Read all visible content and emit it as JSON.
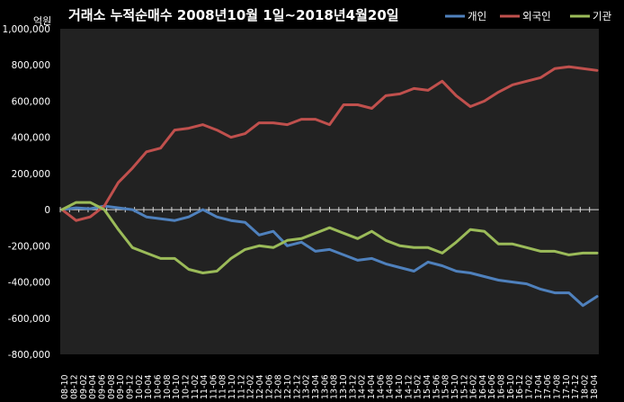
{
  "chart_data": {
    "type": "line",
    "title": "거래소 누적순매수 2008년10월 1일~2018년4월20일",
    "ylabel": "억원",
    "xlabel": "",
    "ylim": [
      -800000,
      1000000
    ],
    "yticks": [
      "1,000,000",
      "800,000",
      "600,000",
      "400,000",
      "200,000",
      "0",
      "-200,000",
      "-400,000",
      "-600,000",
      "-800,000"
    ],
    "ytick_values": [
      1000000,
      800000,
      600000,
      400000,
      200000,
      0,
      -200000,
      -400000,
      -600000,
      -800000
    ],
    "x": [
      "08-10",
      "09-01",
      "09-04",
      "09-07",
      "09-10",
      "10-01",
      "10-04",
      "10-07",
      "10-10",
      "11-01",
      "11-04",
      "11-07",
      "11-10",
      "12-01",
      "12-04",
      "12-07",
      "12-10",
      "13-01",
      "13-04",
      "13-07",
      "13-10",
      "14-01",
      "14-04",
      "14-07",
      "14-10",
      "15-01",
      "15-04",
      "15-07",
      "15-10",
      "16-01",
      "16-04",
      "16-07",
      "16-10",
      "17-01",
      "17-04",
      "17-07",
      "17-10",
      "18-01",
      "18-04"
    ],
    "xticks": [
      "08-10",
      "08-12",
      "09-02",
      "09-04",
      "09-06",
      "09-08",
      "09-10",
      "09-12",
      "10-02",
      "10-04",
      "10-06",
      "10-08",
      "10-10",
      "10-12",
      "11-02",
      "11-04",
      "11-06",
      "11-08",
      "11-10",
      "11-12",
      "12-02",
      "12-04",
      "12-06",
      "12-08",
      "12-10",
      "12-12",
      "13-02",
      "13-04",
      "13-06",
      "13-08",
      "13-10",
      "13-12",
      "14-02",
      "14-04",
      "14-06",
      "14-08",
      "14-10",
      "14-12",
      "15-02",
      "15-04",
      "15-06",
      "15-08",
      "15-10",
      "15-12",
      "16-02",
      "16-04",
      "16-06",
      "16-08",
      "16-10",
      "16-12",
      "17-02",
      "17-04",
      "17-06",
      "17-08",
      "17-10",
      "17-12",
      "18-02",
      "18-04"
    ],
    "legend_position": "top-right",
    "grid": false,
    "series": [
      {
        "name": "개인",
        "color": "#4f81bd",
        "values": [
          0,
          10000,
          5000,
          20000,
          10000,
          0,
          -40000,
          -50000,
          -60000,
          -40000,
          0,
          -40000,
          -60000,
          -70000,
          -140000,
          -120000,
          -200000,
          -180000,
          -230000,
          -220000,
          -250000,
          -280000,
          -270000,
          -300000,
          -320000,
          -340000,
          -290000,
          -310000,
          -340000,
          -350000,
          -370000,
          -390000,
          -400000,
          -410000,
          -440000,
          -460000,
          -460000,
          -530000,
          -480000
        ]
      },
      {
        "name": "외국인",
        "color": "#c0504d",
        "values": [
          0,
          -60000,
          -40000,
          20000,
          150000,
          230000,
          320000,
          340000,
          440000,
          450000,
          470000,
          440000,
          400000,
          420000,
          480000,
          480000,
          470000,
          500000,
          500000,
          470000,
          580000,
          580000,
          560000,
          630000,
          640000,
          670000,
          660000,
          710000,
          630000,
          570000,
          600000,
          650000,
          690000,
          710000,
          730000,
          780000,
          790000,
          780000,
          770000
        ]
      },
      {
        "name": "기관",
        "color": "#9bbb59",
        "values": [
          0,
          40000,
          40000,
          0,
          -110000,
          -210000,
          -240000,
          -270000,
          -270000,
          -330000,
          -350000,
          -340000,
          -270000,
          -220000,
          -200000,
          -210000,
          -170000,
          -160000,
          -130000,
          -100000,
          -130000,
          -160000,
          -120000,
          -170000,
          -200000,
          -210000,
          -210000,
          -240000,
          -180000,
          -110000,
          -120000,
          -190000,
          -190000,
          -210000,
          -230000,
          -230000,
          -250000,
          -240000,
          -240000
        ]
      }
    ]
  }
}
